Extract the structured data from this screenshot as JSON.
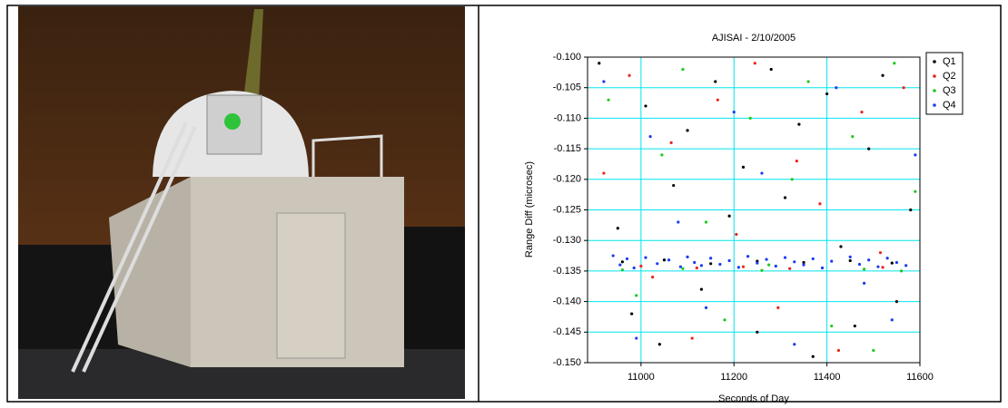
{
  "chart_data": {
    "type": "scatter",
    "title": "AJISAI  - 2/10/2005",
    "x_label": "Seconds of Day",
    "y_label": "Range Diff (microsec)",
    "xlim": [
      10885,
      11600
    ],
    "xticks": [
      11000,
      11200,
      11400,
      11600
    ],
    "ylim": [
      -0.15,
      -0.1
    ],
    "yticks": [
      {
        "value": -0.15,
        "label": "-0.150"
      },
      {
        "value": -0.145,
        "label": "-0.145"
      },
      {
        "value": -0.14,
        "label": "-0.140"
      },
      {
        "value": -0.135,
        "label": "-0.135"
      },
      {
        "value": -0.13,
        "label": "-0.130"
      },
      {
        "value": -0.125,
        "label": "-0.125"
      },
      {
        "value": -0.12,
        "label": "-0.120"
      },
      {
        "value": -0.115,
        "label": "-0.115"
      },
      {
        "value": -0.11,
        "label": "-0.110"
      },
      {
        "value": -0.105,
        "label": "-0.105"
      },
      {
        "value": -0.1,
        "label": "-0.100"
      }
    ],
    "grid": true,
    "legend": "top-right",
    "series": [
      {
        "name": "Q1",
        "color": "#000000",
        "x": [
          10910,
          10950,
          10980,
          11010,
          11040,
          11070,
          11100,
          11130,
          11160,
          11190,
          11220,
          11250,
          11280,
          11310,
          11340,
          11370,
          11400,
          11430,
          11460,
          11490,
          11520,
          11550,
          11580,
          10960,
          11050,
          11150,
          11250,
          11350,
          11450,
          11540
        ],
        "values": [
          -0.101,
          -0.128,
          -0.142,
          -0.108,
          -0.147,
          -0.121,
          -0.112,
          -0.138,
          -0.104,
          -0.126,
          -0.118,
          -0.145,
          -0.102,
          -0.123,
          -0.111,
          -0.149,
          -0.106,
          -0.131,
          -0.144,
          -0.115,
          -0.103,
          -0.14,
          -0.125,
          -0.1335,
          -0.1332,
          -0.1338,
          -0.1334,
          -0.1336,
          -0.1333,
          -0.1337
        ]
      },
      {
        "name": "Q2",
        "color": "#e8261c",
        "x": [
          10920,
          10975,
          11025,
          11065,
          11110,
          11165,
          11205,
          11245,
          11295,
          11335,
          11385,
          11425,
          11475,
          11515,
          11565,
          11000,
          11120,
          11220,
          11320,
          11520
        ],
        "values": [
          -0.119,
          -0.103,
          -0.136,
          -0.114,
          -0.146,
          -0.107,
          -0.129,
          -0.101,
          -0.141,
          -0.117,
          -0.124,
          -0.148,
          -0.109,
          -0.132,
          -0.105,
          -0.1342,
          -0.1345,
          -0.1343,
          -0.1346,
          -0.1344
        ]
      },
      {
        "name": "Q3",
        "color": "#1ec81e",
        "x": [
          10930,
          10990,
          11045,
          11090,
          11140,
          11180,
          11235,
          11275,
          11325,
          11360,
          11410,
          11455,
          11500,
          11545,
          11590,
          10960,
          11090,
          11260,
          11480,
          11560
        ],
        "values": [
          -0.107,
          -0.139,
          -0.116,
          -0.102,
          -0.127,
          -0.143,
          -0.11,
          -0.134,
          -0.12,
          -0.104,
          -0.144,
          -0.113,
          -0.148,
          -0.101,
          -0.122,
          -0.1348,
          -0.1346,
          -0.1349,
          -0.1347,
          -0.135
        ]
      },
      {
        "name": "Q4",
        "color": "#1a3cf0",
        "x": [
          10940,
          10955,
          10970,
          10985,
          11010,
          11035,
          11060,
          11085,
          11100,
          11115,
          11130,
          11150,
          11170,
          11190,
          11210,
          11230,
          11250,
          11270,
          11290,
          11310,
          11330,
          11350,
          11370,
          11390,
          11410,
          11450,
          11470,
          11490,
          11510,
          11530,
          11550,
          11570,
          10920,
          10990,
          11020,
          11080,
          11140,
          11200,
          11260,
          11330,
          11420,
          11480,
          11540,
          11590
        ],
        "values": [
          -0.1325,
          -0.134,
          -0.133,
          -0.1345,
          -0.1328,
          -0.1338,
          -0.1332,
          -0.1343,
          -0.1327,
          -0.1336,
          -0.1341,
          -0.1329,
          -0.1339,
          -0.1333,
          -0.1344,
          -0.1326,
          -0.1337,
          -0.1331,
          -0.1342,
          -0.1328,
          -0.1335,
          -0.134,
          -0.133,
          -0.1345,
          -0.1334,
          -0.1327,
          -0.1339,
          -0.1332,
          -0.1343,
          -0.1329,
          -0.1336,
          -0.1341,
          -0.104,
          -0.146,
          -0.113,
          -0.127,
          -0.141,
          -0.109,
          -0.119,
          -0.147,
          -0.105,
          -0.137,
          -0.143,
          -0.116
        ]
      }
    ]
  }
}
